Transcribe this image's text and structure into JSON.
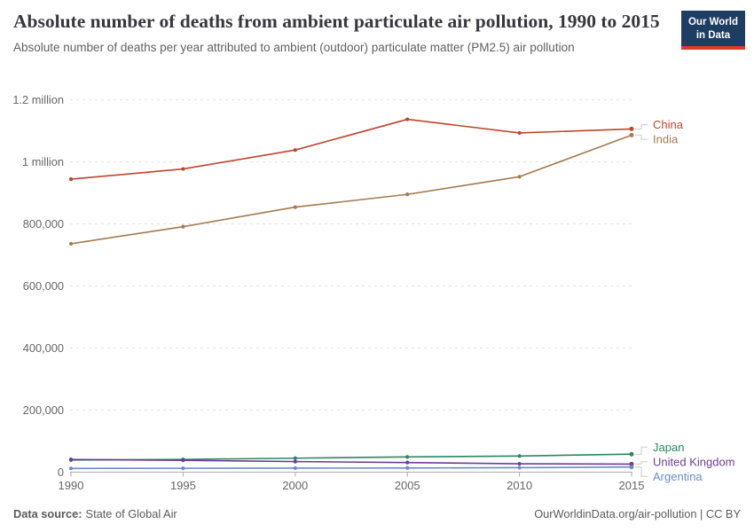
{
  "header": {
    "title": "Absolute number of deaths from ambient particulate air pollution, 1990 to 2015",
    "subtitle": "Absolute number of deaths per year attributed to ambient (outdoor) particulate matter (PM2.5) air pollution",
    "logo": {
      "line1": "Our World",
      "line2": "in Data"
    }
  },
  "footer": {
    "datasource_label": "Data source:",
    "datasource_value": "State of Global Air",
    "credit": "OurWorldinData.org/air-pollution | CC BY"
  },
  "chart_data": {
    "type": "line",
    "title": "Absolute number of deaths from ambient particulate air pollution, 1990 to 2015",
    "xlabel": "",
    "ylabel": "",
    "x": [
      1990,
      1995,
      2000,
      2005,
      2010,
      2015
    ],
    "x_tick_labels": [
      "1990",
      "1995",
      "2000",
      "2005",
      "2010",
      "2015"
    ],
    "xlim": [
      1990,
      2015
    ],
    "ylim": [
      0,
      1200000
    ],
    "grid": "horizontal dashed",
    "legend_position": "right-edge entity labels",
    "y_ticks": [
      {
        "value": 0,
        "label": "0"
      },
      {
        "value": 200000,
        "label": "200,000"
      },
      {
        "value": 400000,
        "label": "400,000"
      },
      {
        "value": 600000,
        "label": "600,000"
      },
      {
        "value": 800000,
        "label": "800,000"
      },
      {
        "value": 1000000,
        "label": "1 million"
      },
      {
        "value": 1200000,
        "label": "1.2 million"
      }
    ],
    "series": [
      {
        "name": "China",
        "color": "#BE452C",
        "values": [
          944000,
          977000,
          1038000,
          1137000,
          1093000,
          1106000
        ]
      },
      {
        "name": "India",
        "color": "#A37B4F",
        "values": [
          736000,
          791000,
          854000,
          895000,
          952000,
          1086000
        ]
      },
      {
        "name": "Japan",
        "color": "#2C8465",
        "values": [
          39000,
          41000,
          45000,
          49000,
          52000,
          58000
        ]
      },
      {
        "name": "United Kingdom",
        "color": "#6D3E91",
        "values": [
          41000,
          38000,
          34000,
          31000,
          27000,
          26000
        ]
      },
      {
        "name": "Argentina",
        "color": "#6B8BCB",
        "values": [
          12000,
          12500,
          13000,
          13500,
          14500,
          16500
        ]
      }
    ],
    "axis_colors": {
      "gridline": "#E3E3E3",
      "axis_line": "#ABABAB",
      "tick_label": "#666666"
    }
  }
}
